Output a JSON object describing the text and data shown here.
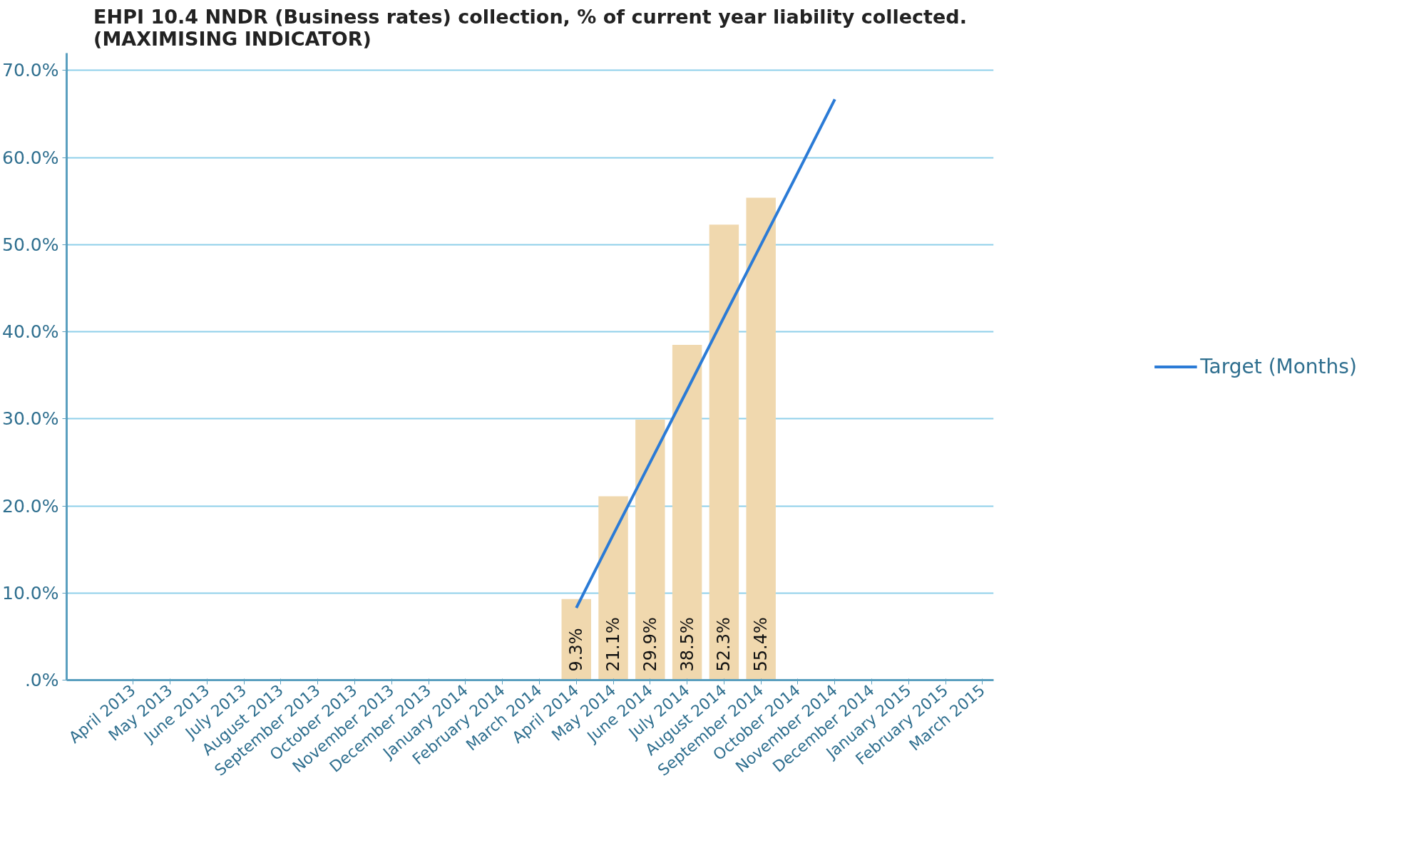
{
  "chart_data": {
    "type": "bar",
    "title": "EHPI 10.4 NNDR (Business rates) collection, % of current year liability collected.\n(MAXIMISING INDICATOR)",
    "categories": [
      "April 2013",
      "May 2013",
      "June 2013",
      "July 2013",
      "August 2013",
      "September 2013",
      "October 2013",
      "November 2013",
      "December 2013",
      "January 2014",
      "February 2014",
      "March 2014",
      "April 2014",
      "May 2014",
      "June 2014",
      "July 2014",
      "August 2014",
      "September 2014",
      "October 2014",
      "November 2014",
      "December 2014",
      "January 2015",
      "February 2015",
      "March 2015"
    ],
    "series": [
      {
        "color": "#f0d8ae",
        "values": [
          null,
          null,
          null,
          null,
          null,
          null,
          null,
          null,
          null,
          null,
          null,
          null,
          9.3,
          21.1,
          29.9,
          38.5,
          52.3,
          55.4,
          null,
          null,
          null,
          null,
          null,
          null
        ]
      },
      {
        "type": "line",
        "name": "Target (Months)",
        "color": "#2b7bd6",
        "values": [
          null,
          null,
          null,
          null,
          null,
          null,
          null,
          null,
          null,
          null,
          null,
          null,
          8.3,
          16.7,
          25,
          33.3,
          41.7,
          50,
          58.3,
          66.7,
          null,
          null,
          null,
          null
        ]
      }
    ],
    "value_labels": [
      null,
      null,
      null,
      null,
      null,
      null,
      null,
      null,
      null,
      null,
      null,
      null,
      "9.3%",
      "21.1%",
      "29.9%",
      "38.5%",
      "52.3%",
      "55.4%",
      null,
      null,
      null,
      null,
      null,
      null
    ],
    "ylim": [
      0,
      72
    ],
    "yticks": [
      {
        "value": 0,
        "label": ".0%"
      },
      {
        "value": 10,
        "label": "10.0%"
      },
      {
        "value": 20,
        "label": "20.0%"
      },
      {
        "value": 30,
        "label": "30.0%"
      },
      {
        "value": 40,
        "label": "40.0%"
      },
      {
        "value": 50,
        "label": "50.0%"
      },
      {
        "value": 60,
        "label": "60.0%"
      },
      {
        "value": 70,
        "label": "70.0%"
      }
    ],
    "grid": "y",
    "legend": "right"
  }
}
